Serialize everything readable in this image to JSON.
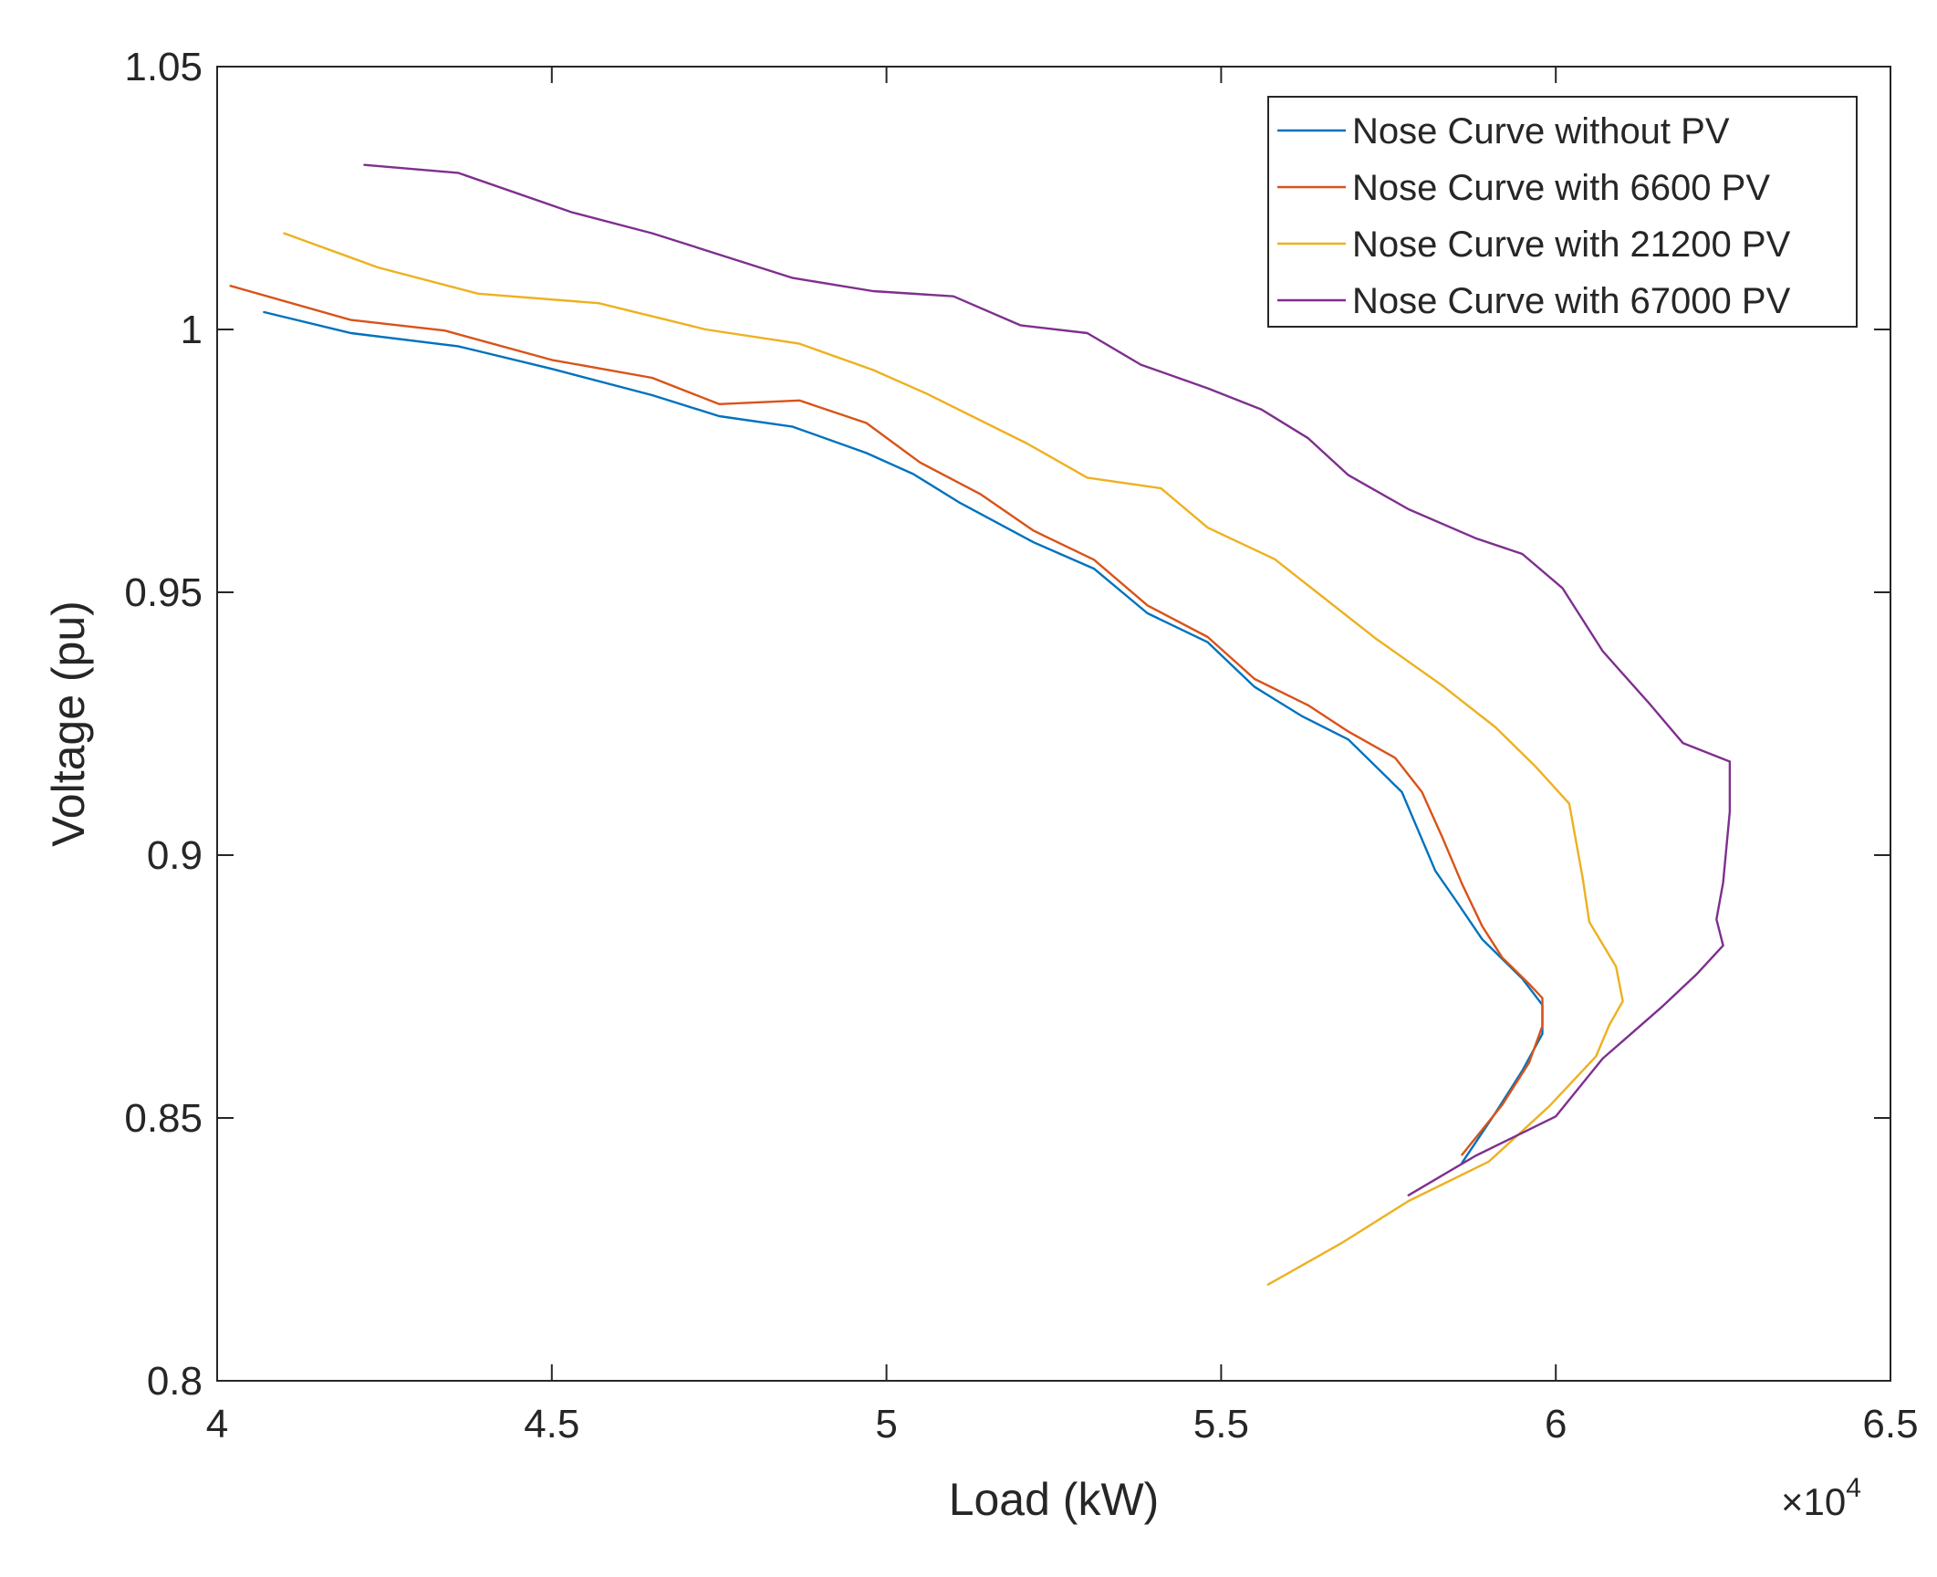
{
  "chart_data": {
    "type": "line",
    "title": "",
    "xlabel": "Load (kW)",
    "ylabel": "Voltage (pu)",
    "x_exponent_label": {
      "base": "×10",
      "exp": "4"
    },
    "xlim": [
      4.0,
      6.5
    ],
    "ylim": [
      0.8,
      1.05
    ],
    "x_ticks": [
      4.0,
      4.5,
      5.0,
      5.5,
      6.0,
      6.5
    ],
    "x_tick_labels": [
      "4",
      "4.5",
      "5",
      "5.5",
      "6",
      "6.5"
    ],
    "y_ticks": [
      0.8,
      0.85,
      0.9,
      0.95,
      1.0,
      1.05
    ],
    "y_tick_labels": [
      "0.8",
      "0.85",
      "0.9",
      "0.95",
      "1",
      "1.05"
    ],
    "grid": false,
    "legend_position": "top-right",
    "series": [
      {
        "name": "Nose Curve without PV",
        "color": "#0072BD",
        "points": [
          [
            4.07,
            1.0033
          ],
          [
            4.2,
            0.9993
          ],
          [
            4.36,
            0.9968
          ],
          [
            4.5,
            0.9925
          ],
          [
            4.65,
            0.9875
          ],
          [
            4.75,
            0.9835
          ],
          [
            4.86,
            0.9815
          ],
          [
            4.97,
            0.9765
          ],
          [
            5.04,
            0.9725
          ],
          [
            5.11,
            0.967
          ],
          [
            5.22,
            0.9595
          ],
          [
            5.31,
            0.9545
          ],
          [
            5.39,
            0.946
          ],
          [
            5.48,
            0.9405
          ],
          [
            5.55,
            0.932
          ],
          [
            5.62,
            0.9265
          ],
          [
            5.69,
            0.922
          ],
          [
            5.77,
            0.912
          ],
          [
            5.82,
            0.897
          ],
          [
            5.85,
            0.8915
          ],
          [
            5.89,
            0.884
          ],
          [
            5.95,
            0.8765
          ],
          [
            5.98,
            0.8715
          ],
          [
            5.98,
            0.866
          ],
          [
            5.95,
            0.859
          ],
          [
            5.91,
            0.851
          ],
          [
            5.86,
            0.8415
          ]
        ]
      },
      {
        "name": "Nose Curve with 6600 PV",
        "color": "#D95319",
        "points": [
          [
            4.02,
            1.0083
          ],
          [
            4.2,
            1.0018
          ],
          [
            4.34,
            0.9998
          ],
          [
            4.5,
            0.9942
          ],
          [
            4.65,
            0.9908
          ],
          [
            4.75,
            0.9858
          ],
          [
            4.87,
            0.9865
          ],
          [
            4.97,
            0.9822
          ],
          [
            5.05,
            0.9747
          ],
          [
            5.14,
            0.9687
          ],
          [
            5.22,
            0.9617
          ],
          [
            5.31,
            0.9562
          ],
          [
            5.39,
            0.9475
          ],
          [
            5.48,
            0.9415
          ],
          [
            5.55,
            0.9335
          ],
          [
            5.63,
            0.9285
          ],
          [
            5.69,
            0.9235
          ],
          [
            5.76,
            0.9185
          ],
          [
            5.8,
            0.912
          ],
          [
            5.83,
            0.9035
          ],
          [
            5.86,
            0.8945
          ],
          [
            5.89,
            0.8865
          ],
          [
            5.92,
            0.8805
          ],
          [
            5.96,
            0.8755
          ],
          [
            5.98,
            0.8728
          ],
          [
            5.98,
            0.8675
          ],
          [
            5.96,
            0.8605
          ],
          [
            5.92,
            0.8525
          ],
          [
            5.86,
            0.843
          ]
        ]
      },
      {
        "name": "Nose Curve with 21200 PV",
        "color": "#EDB120",
        "points": [
          [
            4.1,
            1.0183
          ],
          [
            4.24,
            1.0118
          ],
          [
            4.39,
            1.0068
          ],
          [
            4.57,
            1.005
          ],
          [
            4.73,
            1.0
          ],
          [
            4.87,
            0.9973
          ],
          [
            4.98,
            0.9923
          ],
          [
            5.06,
            0.9878
          ],
          [
            5.21,
            0.9783
          ],
          [
            5.3,
            0.9718
          ],
          [
            5.41,
            0.9698
          ],
          [
            5.48,
            0.9623
          ],
          [
            5.58,
            0.9563
          ],
          [
            5.65,
            0.9493
          ],
          [
            5.73,
            0.9413
          ],
          [
            5.83,
            0.9323
          ],
          [
            5.91,
            0.9243
          ],
          [
            5.97,
            0.9168
          ],
          [
            6.02,
            0.9098
          ],
          [
            6.04,
            0.8958
          ],
          [
            6.05,
            0.8873
          ],
          [
            6.09,
            0.8788
          ],
          [
            6.1,
            0.8722
          ],
          [
            6.08,
            0.8677
          ],
          [
            6.06,
            0.8617
          ],
          [
            5.99,
            0.8522
          ],
          [
            5.9,
            0.8417
          ],
          [
            5.78,
            0.8342
          ],
          [
            5.68,
            0.8262
          ],
          [
            5.57,
            0.8183
          ]
        ]
      },
      {
        "name": "Nose Curve with 67000 PV",
        "color": "#7E2F8E",
        "points": [
          [
            4.22,
            1.0313
          ],
          [
            4.36,
            1.0298
          ],
          [
            4.53,
            1.0223
          ],
          [
            4.65,
            1.0183
          ],
          [
            4.86,
            1.0098
          ],
          [
            4.98,
            1.0073
          ],
          [
            5.1,
            1.0063
          ],
          [
            5.2,
            1.0008
          ],
          [
            5.3,
            0.9993
          ],
          [
            5.38,
            0.9933
          ],
          [
            5.48,
            0.9888
          ],
          [
            5.56,
            0.9848
          ],
          [
            5.63,
            0.9793
          ],
          [
            5.69,
            0.9723
          ],
          [
            5.78,
            0.9658
          ],
          [
            5.88,
            0.9603
          ],
          [
            5.95,
            0.9573
          ],
          [
            6.01,
            0.9508
          ],
          [
            6.07,
            0.9388
          ],
          [
            6.14,
            0.9288
          ],
          [
            6.19,
            0.9213
          ],
          [
            6.26,
            0.9178
          ],
          [
            6.26,
            0.9083
          ],
          [
            6.25,
            0.8948
          ],
          [
            6.24,
            0.8878
          ],
          [
            6.25,
            0.8828
          ],
          [
            6.21,
            0.8773
          ],
          [
            6.16,
            0.8713
          ],
          [
            6.07,
            0.8613
          ],
          [
            6.0,
            0.8503
          ],
          [
            5.88,
            0.8428
          ],
          [
            5.78,
            0.8353
          ]
        ]
      }
    ]
  }
}
